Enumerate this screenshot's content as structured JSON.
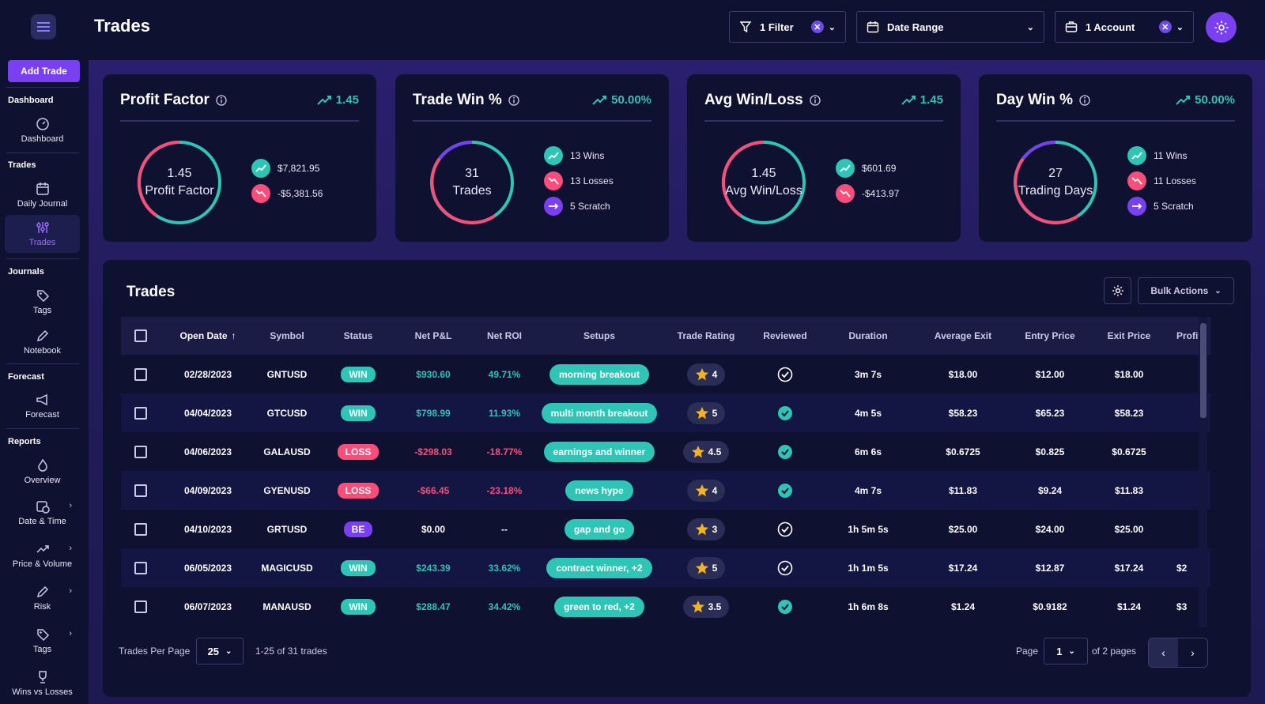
{
  "app": {
    "title": "Trades"
  },
  "sidebar": {
    "add_trade": "Add Trade",
    "sections": {
      "dashboard": "Dashboard",
      "trades": "Trades",
      "journals": "Journals",
      "forecast": "Forecast",
      "reports": "Reports"
    },
    "items": {
      "dashboard": "Dashboard",
      "daily_journal": "Daily Journal",
      "trades": "Trades",
      "tags": "Tags",
      "notebook": "Notebook",
      "forecast": "Forecast",
      "overview": "Overview",
      "date_time": "Date & Time",
      "price_volume": "Price & Volume",
      "risk": "Risk",
      "tags2": "Tags",
      "wins_losses": "Wins vs Losses"
    }
  },
  "header": {
    "filter_label": "1 Filter",
    "date_range_label": "Date Range",
    "account_label": "1 Account"
  },
  "cards": [
    {
      "title": "Profit Factor",
      "metric": "1.45",
      "gauge_value": "1.45",
      "gauge_label": "Profit Factor",
      "legend": [
        {
          "kind": "up",
          "text": "$7,821.95"
        },
        {
          "kind": "down",
          "text": "-$5,381.56"
        }
      ]
    },
    {
      "title": "Trade Win %",
      "metric": "50.00%",
      "gauge_value": "31",
      "gauge_label": "Trades",
      "legend": [
        {
          "kind": "up",
          "text": "13 Wins"
        },
        {
          "kind": "down",
          "text": "13 Losses"
        },
        {
          "kind": "flat",
          "text": "5 Scratch"
        }
      ]
    },
    {
      "title": "Avg Win/Loss",
      "metric": "1.45",
      "gauge_value": "1.45",
      "gauge_label": "Avg Win/Loss",
      "legend": [
        {
          "kind": "up",
          "text": "$601.69"
        },
        {
          "kind": "down",
          "text": "-$413.97"
        }
      ]
    },
    {
      "title": "Day Win %",
      "metric": "50.00%",
      "gauge_value": "27",
      "gauge_label": "Trading Days",
      "legend": [
        {
          "kind": "up",
          "text": "11 Wins"
        },
        {
          "kind": "down",
          "text": "11 Losses"
        },
        {
          "kind": "flat",
          "text": "5 Scratch"
        }
      ]
    }
  ],
  "table": {
    "title": "Trades",
    "bulk_actions": "Bulk Actions",
    "columns": {
      "open_date": "Open Date",
      "symbol": "Symbol",
      "status": "Status",
      "net_pl": "Net P&L",
      "net_roi": "Net ROI",
      "setups": "Setups",
      "trade_rating": "Trade Rating",
      "reviewed": "Reviewed",
      "duration": "Duration",
      "avg_exit": "Average Exit",
      "entry_price": "Entry Price",
      "exit_price": "Exit Price",
      "profit": "Profit"
    },
    "rows": [
      {
        "date": "02/28/2023",
        "symbol": "GNTUSD",
        "status": "WIN",
        "net_pl": "$930.60",
        "net_roi": "49.71%",
        "setup": "morning breakout",
        "rating": "4",
        "reviewed": "outline",
        "duration": "3m 7s",
        "avg_exit": "$18.00",
        "entry": "$12.00",
        "exit": "$18.00",
        "profit": ""
      },
      {
        "date": "04/04/2023",
        "symbol": "GTCUSD",
        "status": "WIN",
        "net_pl": "$798.99",
        "net_roi": "11.93%",
        "setup": "multi month breakout",
        "rating": "5",
        "reviewed": "filled",
        "duration": "4m 5s",
        "avg_exit": "$58.23",
        "entry": "$65.23",
        "exit": "$58.23",
        "profit": ""
      },
      {
        "date": "04/06/2023",
        "symbol": "GALAUSD",
        "status": "LOSS",
        "net_pl": "-$298.03",
        "net_roi": "-18.77%",
        "setup": "earnings and winner",
        "rating": "4.5",
        "reviewed": "filled",
        "duration": "6m 6s",
        "avg_exit": "$0.6725",
        "entry": "$0.825",
        "exit": "$0.6725",
        "profit": ""
      },
      {
        "date": "04/09/2023",
        "symbol": "GYENUSD",
        "status": "LOSS",
        "net_pl": "-$66.45",
        "net_roi": "-23.18%",
        "setup": "news hype",
        "rating": "4",
        "reviewed": "filled",
        "duration": "4m 7s",
        "avg_exit": "$11.83",
        "entry": "$9.24",
        "exit": "$11.83",
        "profit": ""
      },
      {
        "date": "04/10/2023",
        "symbol": "GRTUSD",
        "status": "BE",
        "net_pl": "$0.00",
        "net_roi": "--",
        "setup": "gap and go",
        "rating": "3",
        "reviewed": "outline",
        "duration": "1h 5m 5s",
        "avg_exit": "$25.00",
        "entry": "$24.00",
        "exit": "$25.00",
        "profit": ""
      },
      {
        "date": "06/05/2023",
        "symbol": "MAGICUSD",
        "status": "WIN",
        "net_pl": "$243.39",
        "net_roi": "33.62%",
        "setup": "contract winner, +2",
        "rating": "5",
        "reviewed": "outline",
        "duration": "1h 1m 5s",
        "avg_exit": "$17.24",
        "entry": "$12.87",
        "exit": "$17.24",
        "profit": "$2"
      },
      {
        "date": "06/07/2023",
        "symbol": "MANAUSD",
        "status": "WIN",
        "net_pl": "$288.47",
        "net_roi": "34.42%",
        "setup": "green to red, +2",
        "rating": "3.5",
        "reviewed": "filled",
        "duration": "1h 6m 8s",
        "avg_exit": "$1.24",
        "entry": "$0.9182",
        "exit": "$1.24",
        "profit": "$3"
      }
    ]
  },
  "footer": {
    "per_page_label": "Trades Per Page",
    "per_page": "25",
    "range": "1-25 of 31 trades",
    "page_label": "Page",
    "page": "1",
    "of_pages": "of 2 pages"
  },
  "colors": {
    "accent": "#7b3ff2",
    "win": "#2ec4b6",
    "loss": "#ff4d7a",
    "be": "#7b3ff2"
  }
}
